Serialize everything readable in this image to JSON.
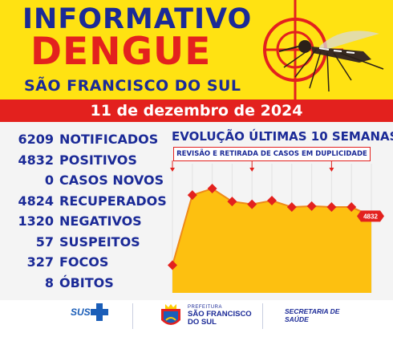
{
  "header": {
    "line1": "INFORMATIVO",
    "line2": "DENGUE",
    "line3": "SÃO FRANCISCO DO SUL",
    "date": "11 de dezembro de 2024"
  },
  "stats": [
    {
      "value": "6209",
      "label": "NOTIFICADOS"
    },
    {
      "value": "4832",
      "label": "POSITIVOS"
    },
    {
      "value": "0",
      "label": "CASOS NOVOS"
    },
    {
      "value": "4824",
      "label": "RECUPERADOS"
    },
    {
      "value": "1320",
      "label": "NEGATIVOS"
    },
    {
      "value": "57",
      "label": "SUSPEITOS"
    },
    {
      "value": "327",
      "label": "FOCOS"
    },
    {
      "value": "8",
      "label": "ÓBITOS"
    }
  ],
  "chart": {
    "title": "EVOLUÇÃO ÚLTIMAS 10 SEMANAS",
    "note": "REVISÃO E RETIRADA DE CASOS EM DUPLICIDADE",
    "last_label": "4832"
  },
  "chart_data": {
    "type": "area",
    "title": "EVOLUÇÃO ÚLTIMAS 10 SEMANAS",
    "x": [
      1,
      2,
      3,
      4,
      5,
      6,
      7,
      8,
      9,
      10,
      11
    ],
    "values": [
      4300,
      5060,
      5130,
      4990,
      4960,
      5000,
      4930,
      4940,
      4930,
      4930,
      4832
    ],
    "ylim": [
      4000,
      5400
    ],
    "annotation": "REVISÃO E RETIRADA DE CASOS EM DUPLICIDADE",
    "last_value_label": "4832",
    "colors": {
      "area": "#fdc010",
      "marker": "#e3211e",
      "line": "#ef8a18"
    }
  },
  "footer": {
    "sus": "SUS",
    "pref_small": "PREFEITURA",
    "pref_name": "SÃO FRANCISCO DO SUL",
    "secretaria": "SECRETARIA DE SAÚDE"
  },
  "colors": {
    "yellow": "#ffe212",
    "red": "#e3211e",
    "navy": "#1b2a97"
  }
}
